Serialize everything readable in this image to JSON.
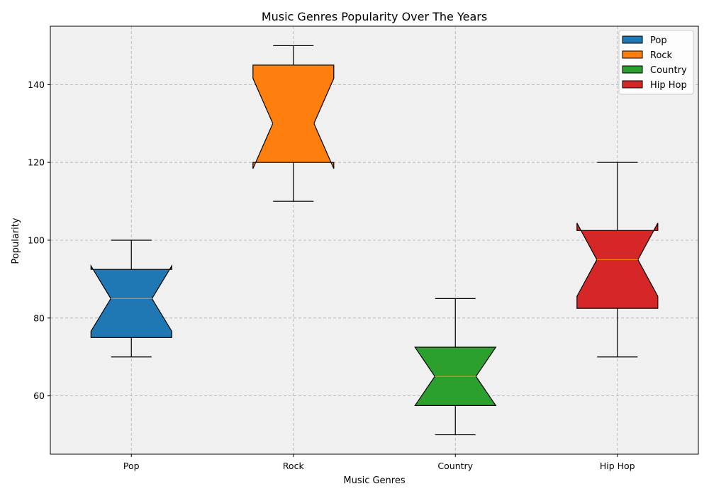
{
  "chart_data": {
    "type": "boxplot",
    "title": "Music Genres Popularity Over The Years",
    "xlabel": "Music Genres",
    "ylabel": "Popularity",
    "ylim": [
      45,
      155
    ],
    "yticks": [
      60,
      80,
      100,
      120,
      140
    ],
    "notched": true,
    "grid": true,
    "grid_style": "dashed",
    "plot_background": "#f0f0f0",
    "legend_position": "top-right",
    "median_color": "#ff7f0e",
    "categories": [
      "Pop",
      "Rock",
      "Country",
      "Hip Hop"
    ],
    "series": [
      {
        "name": "Pop",
        "color": "#1f77b4",
        "whisker_low": 70,
        "q1": 75,
        "median": 85,
        "q3": 92.5,
        "whisker_high": 100,
        "notch_low": 76.6,
        "notch_high": 93.4
      },
      {
        "name": "Rock",
        "color": "#ff7f0e",
        "whisker_low": 110,
        "q1": 120,
        "median": 130,
        "q3": 145,
        "whisker_high": 150,
        "notch_low": 118.4,
        "notch_high": 141.6
      },
      {
        "name": "Country",
        "color": "#2ca02c",
        "whisker_low": 50,
        "q1": 57.5,
        "median": 65,
        "q3": 72.5,
        "whisker_high": 85,
        "notch_low": 57.5,
        "notch_high": 72.5
      },
      {
        "name": "Hip Hop",
        "color": "#d62728",
        "whisker_low": 70,
        "q1": 82.5,
        "median": 95,
        "q3": 102.5,
        "whisker_high": 120,
        "notch_low": 85.6,
        "notch_high": 104.4
      }
    ]
  }
}
